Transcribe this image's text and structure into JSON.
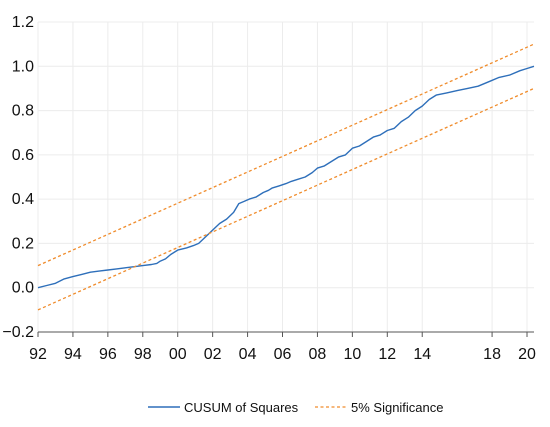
{
  "chart_data": {
    "type": "line",
    "title": "",
    "xlabel": "",
    "ylabel": "",
    "x_tick_labels": [
      "92",
      "94",
      "96",
      "98",
      "00",
      "02",
      "04",
      "06",
      "08",
      "10",
      "12",
      "14",
      "18",
      "20"
    ],
    "x_tick_years": [
      1992,
      1994,
      1996,
      1998,
      2000,
      2002,
      2004,
      2006,
      2008,
      2010,
      2012,
      2014,
      2018,
      2020
    ],
    "y_ticks": [
      -0.2,
      0.0,
      0.2,
      0.4,
      0.6,
      0.8,
      1.0,
      1.2
    ],
    "y_tick_labels": [
      "−0.2",
      "0.0",
      "0.2",
      "0.4",
      "0.6",
      "0.8",
      "1.0",
      "1.2"
    ],
    "xlim": [
      1992,
      2020.4
    ],
    "ylim": [
      -0.2,
      1.2
    ],
    "grid": true,
    "legend_position": "bottom",
    "series": [
      {
        "name": "CUSUM of Squares",
        "color": "#2e6fba",
        "style": "solid",
        "x": [
          1992.0,
          1992.5,
          1993.0,
          1993.5,
          1994.0,
          1994.5,
          1995.0,
          1995.5,
          1996.0,
          1996.5,
          1997.0,
          1997.5,
          1998.0,
          1998.5,
          1998.8,
          1999.0,
          1999.3,
          1999.6,
          2000.0,
          2000.5,
          2000.9,
          2001.2,
          2001.6,
          2002.0,
          2002.4,
          2002.8,
          2003.2,
          2003.5,
          2003.8,
          2004.1,
          2004.5,
          2004.9,
          2005.2,
          2005.4,
          2005.8,
          2006.2,
          2006.5,
          2006.9,
          2007.3,
          2007.7,
          2008.0,
          2008.4,
          2008.8,
          2009.2,
          2009.6,
          2010.0,
          2010.4,
          2010.8,
          2011.2,
          2011.6,
          2012.0,
          2012.4,
          2012.8,
          2013.2,
          2013.6,
          2014.0,
          2014.4,
          2014.8,
          2015.4,
          2016.0,
          2016.6,
          2017.2,
          2017.8,
          2018.4,
          2019.0,
          2019.6,
          2020.0,
          2020.4
        ],
        "values": [
          0.0,
          0.01,
          0.02,
          0.04,
          0.05,
          0.06,
          0.07,
          0.075,
          0.08,
          0.085,
          0.09,
          0.095,
          0.1,
          0.105,
          0.11,
          0.12,
          0.13,
          0.15,
          0.17,
          0.18,
          0.19,
          0.2,
          0.23,
          0.26,
          0.29,
          0.31,
          0.34,
          0.38,
          0.39,
          0.4,
          0.41,
          0.43,
          0.44,
          0.45,
          0.46,
          0.47,
          0.48,
          0.49,
          0.5,
          0.52,
          0.54,
          0.55,
          0.57,
          0.59,
          0.6,
          0.63,
          0.64,
          0.66,
          0.68,
          0.69,
          0.71,
          0.72,
          0.75,
          0.77,
          0.8,
          0.82,
          0.85,
          0.87,
          0.88,
          0.89,
          0.9,
          0.91,
          0.93,
          0.95,
          0.96,
          0.98,
          0.99,
          1.0
        ]
      },
      {
        "name": "5% Significance",
        "color": "#f08c2c",
        "style": "dashed",
        "x": [
          1992.0,
          2020.4
        ],
        "values": [
          0.1,
          1.1
        ]
      },
      {
        "name": "5% Significance",
        "color": "#f08c2c",
        "style": "dashed",
        "x": [
          1992.0,
          2020.4
        ],
        "values": [
          -0.1,
          0.9
        ]
      }
    ],
    "legend": [
      "CUSUM of Squares",
      "5% Significance"
    ]
  }
}
